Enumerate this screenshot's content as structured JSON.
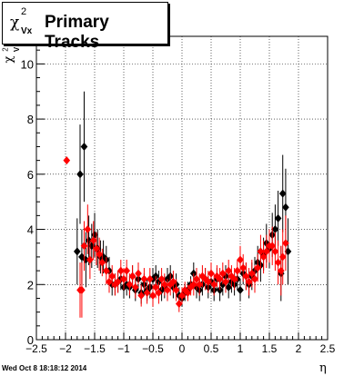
{
  "title": {
    "symbol": "χ",
    "superscript": "2",
    "subscript": "Vx",
    "text": "Primary Tracks"
  },
  "footer": "Wed Oct  8 18:18:12 2014",
  "colors": {
    "black_series": "#000000",
    "red_series": "#ff0000",
    "grid": "#000000"
  },
  "chart_data": {
    "type": "scatter",
    "xlabel": "η",
    "ylabel": {
      "symbol": "χ",
      "superscript": "2",
      "subscript": "V"
    },
    "xlim": [
      -2.5,
      2.5
    ],
    "ylim": [
      0,
      11
    ],
    "xticks": [
      -2.5,
      -2,
      -1.5,
      -1,
      -0.5,
      0,
      0.5,
      1,
      1.5,
      2,
      2.5
    ],
    "xtick_labels": [
      "−2.5",
      "−2",
      "−1.5",
      "−1",
      "−0.5",
      "0",
      "0.5",
      "1",
      "1.5",
      "2",
      "2.5"
    ],
    "yticks": [
      0,
      2,
      4,
      6,
      8,
      10
    ],
    "ytick_labels": [
      "0",
      "2",
      "4",
      "6",
      "8",
      "10"
    ],
    "grid": true,
    "series": [
      {
        "color": "#000000",
        "marker": "diamond",
        "points": [
          [
            -1.8,
            3.2,
            1.2
          ],
          [
            -1.75,
            6.0,
            1.8
          ],
          [
            -1.72,
            3.0,
            1.0
          ],
          [
            -1.68,
            7.0,
            2.0
          ],
          [
            -1.65,
            2.9,
            1.0
          ],
          [
            -1.6,
            3.6,
            0.9
          ],
          [
            -1.55,
            3.4,
            0.8
          ],
          [
            -1.5,
            3.8,
            0.8
          ],
          [
            -1.45,
            3.3,
            0.7
          ],
          [
            -1.4,
            3.0,
            0.6
          ],
          [
            -1.35,
            3.0,
            0.6
          ],
          [
            -1.3,
            2.9,
            0.5
          ],
          [
            -1.25,
            2.5,
            0.5
          ],
          [
            -1.2,
            2.0,
            0.4
          ],
          [
            -1.15,
            2.0,
            0.4
          ],
          [
            -1.1,
            2.1,
            0.4
          ],
          [
            -1.05,
            2.2,
            0.4
          ],
          [
            -1.0,
            1.9,
            0.4
          ],
          [
            -0.95,
            2.0,
            0.4
          ],
          [
            -0.9,
            1.9,
            0.4
          ],
          [
            -0.85,
            2.3,
            0.4
          ],
          [
            -0.8,
            1.8,
            0.4
          ],
          [
            -0.75,
            2.2,
            0.4
          ],
          [
            -0.7,
            1.7,
            0.4
          ],
          [
            -0.65,
            2.0,
            0.4
          ],
          [
            -0.6,
            1.8,
            0.4
          ],
          [
            -0.55,
            1.9,
            0.4
          ],
          [
            -0.5,
            2.2,
            0.4
          ],
          [
            -0.45,
            2.3,
            0.4
          ],
          [
            -0.4,
            2.1,
            0.4
          ],
          [
            -0.35,
            1.8,
            0.4
          ],
          [
            -0.3,
            1.9,
            0.4
          ],
          [
            -0.25,
            2.2,
            0.4
          ],
          [
            -0.2,
            2.3,
            0.4
          ],
          [
            -0.15,
            1.9,
            0.4
          ],
          [
            -0.1,
            2.0,
            0.4
          ],
          [
            -0.05,
            1.6,
            0.3
          ],
          [
            0.0,
            1.5,
            0.3
          ],
          [
            0.05,
            1.7,
            0.3
          ],
          [
            0.1,
            1.8,
            0.3
          ],
          [
            0.15,
            2.0,
            0.3
          ],
          [
            0.2,
            2.4,
            0.4
          ],
          [
            0.25,
            1.9,
            0.4
          ],
          [
            0.3,
            1.8,
            0.4
          ],
          [
            0.35,
            2.0,
            0.4
          ],
          [
            0.4,
            2.2,
            0.4
          ],
          [
            0.45,
            1.9,
            0.4
          ],
          [
            0.5,
            2.1,
            0.4
          ],
          [
            0.55,
            1.8,
            0.4
          ],
          [
            0.6,
            2.2,
            0.4
          ],
          [
            0.65,
            1.8,
            0.4
          ],
          [
            0.7,
            2.0,
            0.4
          ],
          [
            0.75,
            2.3,
            0.4
          ],
          [
            0.8,
            1.9,
            0.4
          ],
          [
            0.85,
            2.1,
            0.4
          ],
          [
            0.9,
            2.0,
            0.4
          ],
          [
            0.95,
            2.2,
            0.4
          ],
          [
            1.0,
            1.8,
            0.4
          ],
          [
            1.05,
            2.4,
            0.4
          ],
          [
            1.1,
            2.3,
            0.5
          ],
          [
            1.15,
            2.0,
            0.5
          ],
          [
            1.2,
            2.3,
            0.5
          ],
          [
            1.25,
            2.5,
            0.5
          ],
          [
            1.3,
            2.8,
            0.6
          ],
          [
            1.35,
            2.7,
            0.6
          ],
          [
            1.4,
            3.1,
            0.6
          ],
          [
            1.45,
            3.5,
            0.7
          ],
          [
            1.5,
            3.3,
            0.7
          ],
          [
            1.55,
            3.8,
            0.8
          ],
          [
            1.6,
            4.0,
            0.9
          ],
          [
            1.65,
            4.4,
            1.0
          ],
          [
            1.7,
            2.4,
            1.0
          ],
          [
            1.73,
            5.3,
            1.4
          ],
          [
            1.78,
            4.8,
            1.4
          ],
          [
            1.82,
            3.2,
            1.2
          ]
        ]
      },
      {
        "color": "#ff0000",
        "marker": "diamond",
        "points": [
          [
            -1.98,
            6.5,
            0.0
          ],
          [
            -1.75,
            1.8,
            1.0
          ],
          [
            -1.72,
            1.8,
            1.0
          ],
          [
            -1.68,
            3.4,
            0.9
          ],
          [
            -1.62,
            4.0,
            0.9
          ],
          [
            -1.58,
            2.9,
            0.7
          ],
          [
            -1.52,
            3.6,
            0.7
          ],
          [
            -1.47,
            3.3,
            0.6
          ],
          [
            -1.42,
            3.1,
            0.6
          ],
          [
            -1.37,
            2.8,
            0.5
          ],
          [
            -1.3,
            2.5,
            0.5
          ],
          [
            -1.25,
            2.1,
            0.4
          ],
          [
            -1.2,
            2.3,
            0.4
          ],
          [
            -1.15,
            2.0,
            0.4
          ],
          [
            -1.1,
            2.1,
            0.4
          ],
          [
            -1.05,
            2.5,
            0.4
          ],
          [
            -1.0,
            2.2,
            0.4
          ],
          [
            -0.95,
            2.5,
            0.4
          ],
          [
            -0.9,
            2.0,
            0.4
          ],
          [
            -0.85,
            2.3,
            0.4
          ],
          [
            -0.8,
            1.9,
            0.4
          ],
          [
            -0.75,
            2.4,
            0.4
          ],
          [
            -0.7,
            1.6,
            0.4
          ],
          [
            -0.65,
            2.2,
            0.4
          ],
          [
            -0.6,
            1.7,
            0.4
          ],
          [
            -0.55,
            2.2,
            0.4
          ],
          [
            -0.5,
            1.6,
            0.4
          ],
          [
            -0.45,
            1.9,
            0.4
          ],
          [
            -0.4,
            1.7,
            0.4
          ],
          [
            -0.35,
            2.2,
            0.4
          ],
          [
            -0.3,
            2.0,
            0.4
          ],
          [
            -0.25,
            1.8,
            0.4
          ],
          [
            -0.2,
            2.0,
            0.4
          ],
          [
            -0.15,
            2.1,
            0.4
          ],
          [
            -0.1,
            1.8,
            0.4
          ],
          [
            -0.05,
            1.3,
            0.3
          ],
          [
            0.0,
            1.6,
            0.3
          ],
          [
            0.05,
            1.8,
            0.3
          ],
          [
            0.1,
            1.7,
            0.3
          ],
          [
            0.15,
            1.9,
            0.3
          ],
          [
            0.2,
            2.0,
            0.4
          ],
          [
            0.25,
            2.2,
            0.4
          ],
          [
            0.3,
            2.0,
            0.4
          ],
          [
            0.35,
            2.3,
            0.4
          ],
          [
            0.4,
            2.2,
            0.4
          ],
          [
            0.45,
            2.1,
            0.4
          ],
          [
            0.5,
            2.4,
            0.4
          ],
          [
            0.55,
            2.0,
            0.4
          ],
          [
            0.6,
            2.3,
            0.4
          ],
          [
            0.65,
            2.2,
            0.4
          ],
          [
            0.7,
            2.4,
            0.4
          ],
          [
            0.75,
            2.1,
            0.4
          ],
          [
            0.8,
            2.5,
            0.4
          ],
          [
            0.85,
            2.3,
            0.4
          ],
          [
            0.9,
            2.2,
            0.4
          ],
          [
            0.95,
            2.5,
            0.4
          ],
          [
            1.0,
            2.9,
            0.5
          ],
          [
            1.05,
            2.6,
            0.5
          ],
          [
            1.1,
            2.3,
            0.5
          ],
          [
            1.15,
            2.1,
            0.5
          ],
          [
            1.2,
            2.4,
            0.5
          ],
          [
            1.25,
            2.2,
            0.5
          ],
          [
            1.3,
            2.6,
            0.5
          ],
          [
            1.35,
            3.2,
            0.6
          ],
          [
            1.4,
            3.0,
            0.6
          ],
          [
            1.45,
            3.2,
            0.6
          ],
          [
            1.5,
            3.4,
            0.6
          ],
          [
            1.55,
            3.4,
            0.7
          ],
          [
            1.6,
            3.2,
            0.7
          ],
          [
            1.65,
            2.8,
            0.8
          ],
          [
            1.7,
            2.5,
            0.9
          ],
          [
            1.73,
            3.0,
            1.0
          ],
          [
            1.78,
            3.5,
            1.0
          ]
        ]
      }
    ]
  }
}
